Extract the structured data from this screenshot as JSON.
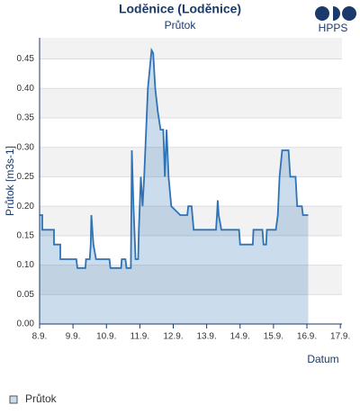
{
  "brand": "HPPS",
  "chart_data": {
    "type": "area",
    "title": "Loděnice (Loděnice)",
    "subtitle": "Průtok",
    "xlabel": "Datum",
    "ylabel": "Průtok [m3s-1]",
    "x": [
      8.0,
      8.08,
      8.08,
      8.43,
      8.43,
      8.62,
      8.62,
      9.1,
      9.13,
      9.37,
      9.39,
      9.5,
      9.53,
      9.55,
      9.61,
      9.69,
      10.09,
      10.12,
      10.44,
      10.46,
      10.57,
      10.6,
      10.73,
      10.76,
      10.81,
      10.87,
      10.95,
      10.97,
      11.03,
      11.08,
      11.13,
      11.19,
      11.24,
      11.35,
      11.4,
      11.46,
      11.54,
      11.62,
      11.7,
      11.75,
      11.8,
      11.86,
      11.94,
      12.21,
      12.42,
      12.45,
      12.55,
      12.61,
      13.28,
      13.31,
      13.33,
      13.36,
      13.44,
      13.97,
      14.0,
      14.38,
      14.4,
      14.67,
      14.7,
      14.78,
      14.8,
      15.07,
      15.13,
      15.18,
      15.26,
      15.45,
      15.5,
      15.66,
      15.71,
      15.85,
      15.88,
      16.04
    ],
    "series": [
      {
        "name": "Průtok",
        "color": "#2f72b5",
        "values": [
          0.185,
          0.185,
          0.16,
          0.16,
          0.135,
          0.135,
          0.11,
          0.11,
          0.095,
          0.095,
          0.11,
          0.11,
          0.135,
          0.185,
          0.135,
          0.11,
          0.11,
          0.095,
          0.095,
          0.11,
          0.11,
          0.095,
          0.095,
          0.295,
          0.2,
          0.11,
          0.11,
          0.16,
          0.25,
          0.2,
          0.25,
          0.33,
          0.4,
          0.465,
          0.46,
          0.4,
          0.36,
          0.33,
          0.33,
          0.25,
          0.33,
          0.25,
          0.2,
          0.185,
          0.185,
          0.2,
          0.2,
          0.16,
          0.16,
          0.185,
          0.21,
          0.185,
          0.16,
          0.16,
          0.135,
          0.135,
          0.16,
          0.16,
          0.135,
          0.135,
          0.16,
          0.16,
          0.185,
          0.25,
          0.295,
          0.295,
          0.25,
          0.25,
          0.2,
          0.2,
          0.185,
          0.185
        ]
      }
    ],
    "xlim": [
      8,
      17.05
    ],
    "xticks": [
      {
        "value": 8,
        "label": "8.9."
      },
      {
        "value": 9,
        "label": "9.9."
      },
      {
        "value": 10,
        "label": "10.9."
      },
      {
        "value": 11,
        "label": "11.9."
      },
      {
        "value": 12,
        "label": "12.9."
      },
      {
        "value": 13,
        "label": "13.9."
      },
      {
        "value": 14,
        "label": "14.9."
      },
      {
        "value": 15,
        "label": "15.9."
      },
      {
        "value": 16,
        "label": "16.9."
      },
      {
        "value": 17,
        "label": "17.9."
      }
    ],
    "ylim": [
      0,
      0.486
    ],
    "yticks": [
      {
        "value": 0,
        "label": "0.00"
      },
      {
        "value": 0.05,
        "label": "0.05"
      },
      {
        "value": 0.1,
        "label": "0.10"
      },
      {
        "value": 0.15,
        "label": "0.15"
      },
      {
        "value": 0.2,
        "label": "0.20"
      },
      {
        "value": 0.25,
        "label": "0.25"
      },
      {
        "value": 0.3,
        "label": "0.30"
      },
      {
        "value": 0.35,
        "label": "0.35"
      },
      {
        "value": 0.4,
        "label": "0.40"
      },
      {
        "value": 0.45,
        "label": "0.45"
      }
    ],
    "grid": true,
    "legend": "bottom-left"
  }
}
